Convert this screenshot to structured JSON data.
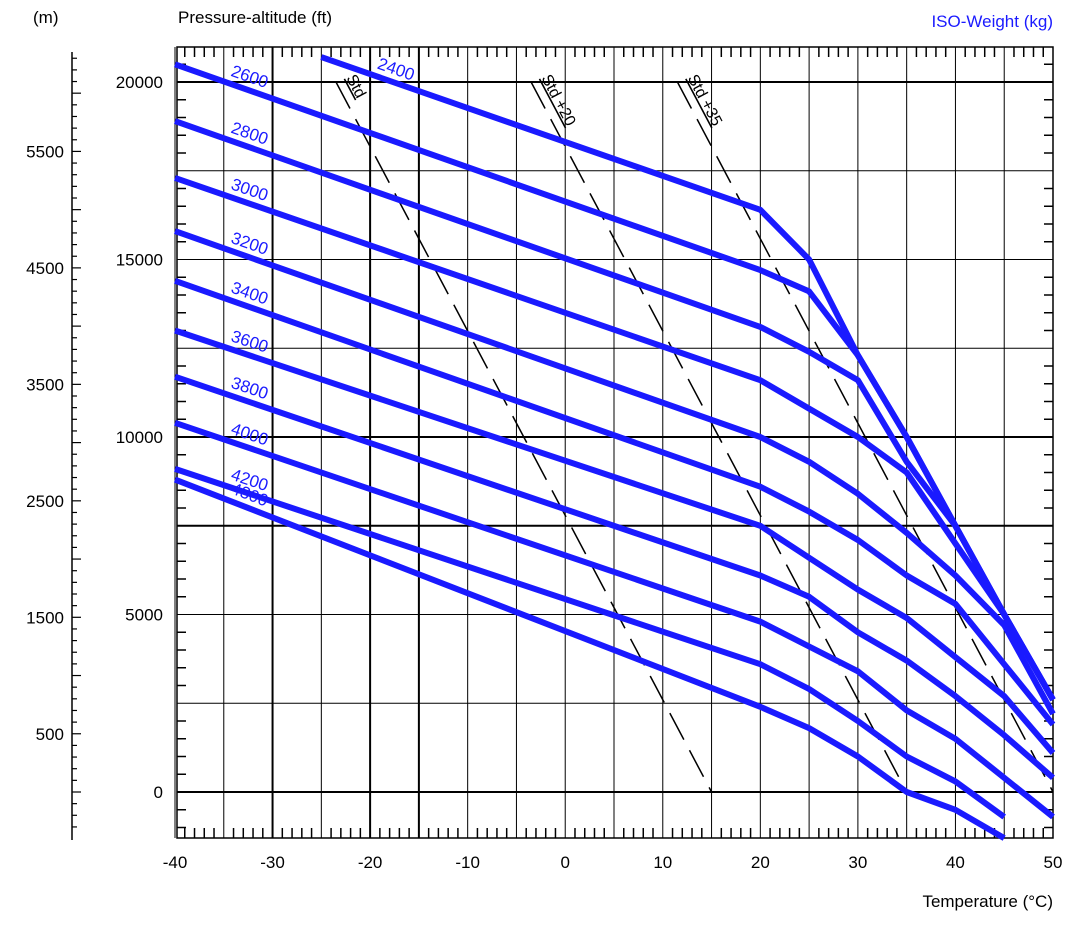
{
  "header": {
    "left_unit": "(m)",
    "y_title": "Pressure-altitude (ft)",
    "legend_title": "ISO-Weight (kg)",
    "x_title": "Temperature (°C)"
  },
  "chart_data": {
    "type": "line",
    "xlabel": "Temperature (°C)",
    "ylabel": "Pressure-altitude (ft)",
    "secondary_ylabel": "(m)",
    "xlim": [
      -40,
      50
    ],
    "ylim": [
      -1400,
      21000
    ],
    "x_ticks": [
      "-40",
      "-30",
      "-20",
      "-10",
      "0",
      "10",
      "20",
      "30",
      "40",
      "50"
    ],
    "y_ticks": [
      "0",
      "5000",
      "10000",
      "15000",
      "20000"
    ],
    "m_ticks": [
      "500",
      "1500",
      "2500",
      "3500",
      "4500",
      "5500"
    ],
    "colors": {
      "weight_curve": "#1a1aff",
      "weight_label": "#1a1aff",
      "legend": "#1a1aff",
      "grid": "#000000"
    },
    "series": [
      {
        "name": "2400",
        "x": [
          -25,
          20,
          25,
          30,
          35,
          40,
          45,
          50
        ],
        "y": [
          20700,
          16400,
          15000,
          12300,
          10000,
          7500,
          5000,
          2600
        ]
      },
      {
        "name": "2600",
        "x": [
          -40,
          20,
          25,
          30,
          35,
          40,
          45,
          50
        ],
        "y": [
          20500,
          14700,
          14100,
          12300,
          10000,
          7500,
          5000,
          2600
        ]
      },
      {
        "name": "2800",
        "x": [
          -40,
          20,
          25,
          30,
          35,
          40,
          45,
          50
        ],
        "y": [
          18900,
          13100,
          12400,
          11600,
          9300,
          7500,
          5000,
          2600
        ]
      },
      {
        "name": "3000",
        "x": [
          -40,
          20,
          25,
          30,
          35,
          40,
          45,
          50
        ],
        "y": [
          17300,
          11600,
          10800,
          10000,
          9000,
          7000,
          5000,
          2600
        ]
      },
      {
        "name": "3200",
        "x": [
          -40,
          20,
          25,
          30,
          35,
          40,
          45,
          50
        ],
        "y": [
          15800,
          10000,
          9300,
          8400,
          7300,
          6100,
          4700,
          2200
        ]
      },
      {
        "name": "3400",
        "x": [
          -40,
          20,
          25,
          30,
          35,
          40,
          45,
          50
        ],
        "y": [
          14400,
          8600,
          7900,
          7100,
          6100,
          5300,
          3600,
          1900
        ]
      },
      {
        "name": "3600",
        "x": [
          -40,
          20,
          25,
          30,
          35,
          40,
          45,
          50
        ],
        "y": [
          13000,
          7500,
          6600,
          5700,
          4900,
          3800,
          2700,
          1100
        ]
      },
      {
        "name": "3800",
        "x": [
          -40,
          20,
          25,
          30,
          35,
          40,
          45,
          50
        ],
        "y": [
          11700,
          6100,
          5500,
          4500,
          3700,
          2700,
          1600,
          400
        ]
      },
      {
        "name": "4000",
        "x": [
          -40,
          20,
          25,
          30,
          35,
          40,
          45,
          50
        ],
        "y": [
          10400,
          4800,
          4100,
          3400,
          2300,
          1500,
          400,
          -700
        ]
      },
      {
        "name": "4200",
        "x": [
          -40,
          20,
          25,
          30,
          35,
          40,
          45
        ],
        "y": [
          9100,
          3600,
          2900,
          2000,
          1000,
          300,
          -700
        ]
      },
      {
        "name": "4300",
        "x": [
          -40,
          20,
          25,
          30,
          35,
          40,
          45
        ],
        "y": [
          8800,
          2400,
          1800,
          1000,
          0,
          -500,
          -1300
        ]
      }
    ],
    "reference_lines": [
      {
        "label": "Std",
        "x": [
          -23.5,
          15
        ],
        "y": [
          20000,
          0
        ]
      },
      {
        "label": "Std +20",
        "x": [
          -3.5,
          35
        ],
        "y": [
          20000,
          0
        ]
      },
      {
        "label": "Std +35",
        "x": [
          11.5,
          50
        ],
        "y": [
          20000,
          0
        ]
      }
    ]
  }
}
